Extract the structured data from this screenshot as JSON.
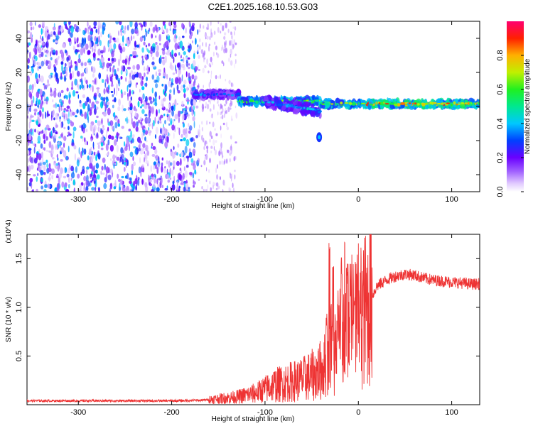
{
  "title": "C2E1.2025.168.10.53.G03",
  "chart_data": [
    {
      "type": "heatmap",
      "xlabel": "Height of straight line (km)",
      "ylabel": "Frequency (Hz)",
      "xlim": [
        -355,
        130
      ],
      "ylim": [
        -50,
        50
      ],
      "xticks": [
        -300,
        -200,
        -100,
        0,
        100
      ],
      "yticks": [
        -40,
        -20,
        0,
        20,
        40
      ],
      "colorbar": {
        "label": "Normalized spectral amplitude",
        "range": [
          0,
          1
        ],
        "ticks": [
          0.0,
          0.2,
          0.4,
          0.6,
          0.8
        ]
      },
      "features": [
        {
          "region": "noise",
          "x_from": -355,
          "x_to": -172,
          "frequency_range": [
            -50,
            50
          ],
          "amplitude": 0.15
        },
        {
          "region": "sparse noise",
          "x_from": -172,
          "x_to": -130,
          "frequency_range": [
            -50,
            50
          ],
          "amplitude": 0.05
        },
        {
          "region": "signal",
          "x_from": -178,
          "x_to": -128,
          "frequency_center": 7,
          "amplitude": 0.3
        },
        {
          "region": "signal",
          "x_from": -128,
          "x_to": -40,
          "frequency_center": 3,
          "amplitude": 0.55
        },
        {
          "region": "signal branch",
          "x_from": -100,
          "x_to": -40,
          "frequency_center": 3,
          "amplitude": 0.35
        },
        {
          "region": "signal",
          "x_from": -40,
          "x_to": 10,
          "frequency_center": 1.5,
          "amplitude": 0.6
        },
        {
          "region": "signal",
          "x_from": 10,
          "x_to": 130,
          "frequency_center": 1.5,
          "amplitude": 0.7
        }
      ]
    },
    {
      "type": "line",
      "xlabel": "Height of straight line (km)",
      "ylabel": "SNR (10 * v/v)",
      "y_multiplier": "(x10^4)",
      "xlim": [
        -355,
        130
      ],
      "ylim": [
        0,
        1.75
      ],
      "xticks": [
        -300,
        -200,
        -100,
        0,
        100
      ],
      "yticks": [
        0.5,
        1.0,
        1.5
      ],
      "color": "#ee3333",
      "series": [
        {
          "x": [
            -355,
            -300,
            -250,
            -200,
            -170,
            -150,
            -130,
            -110,
            -100,
            -90,
            -80,
            -70,
            -60,
            -50,
            -45,
            -40,
            -35,
            -30,
            -25,
            -20,
            -15,
            -10,
            -5,
            0,
            5,
            10,
            15,
            20,
            30,
            40,
            50,
            60,
            70,
            80,
            90,
            100,
            110,
            120,
            130
          ],
          "y": [
            0.04,
            0.04,
            0.04,
            0.04,
            0.045,
            0.06,
            0.08,
            0.12,
            0.16,
            0.2,
            0.22,
            0.24,
            0.26,
            0.3,
            0.32,
            0.36,
            0.42,
            0.5,
            0.6,
            0.7,
            0.75,
            0.8,
            0.9,
            0.9,
            0.95,
            1.0,
            1.12,
            1.22,
            1.28,
            1.32,
            1.34,
            1.33,
            1.3,
            1.28,
            1.27,
            1.26,
            1.25,
            1.24,
            1.24
          ]
        }
      ],
      "spikes": [
        {
          "x": -34,
          "y": 0.95
        },
        {
          "x": -31,
          "y": 1.68
        },
        {
          "x": -29,
          "y": 1.1
        },
        {
          "x": -27,
          "y": 1.45
        },
        {
          "x": -22,
          "y": 1.75
        },
        {
          "x": -18,
          "y": 1.55
        },
        {
          "x": -15,
          "y": 1.75
        },
        {
          "x": -12,
          "y": 1.45
        },
        {
          "x": -8,
          "y": 1.3
        },
        {
          "x": -4,
          "y": 1.15
        },
        {
          "x": 2,
          "y": 1.05
        }
      ]
    }
  ]
}
